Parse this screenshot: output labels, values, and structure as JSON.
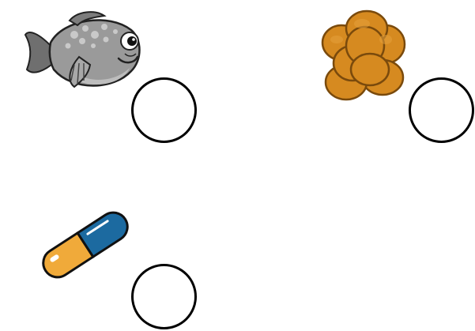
{
  "items": [
    {
      "name": "fish",
      "icon": "fish-icon",
      "answer": ""
    },
    {
      "name": "fish-eggs",
      "icon": "roe-cluster-icon",
      "answer": ""
    },
    {
      "name": "capsule",
      "icon": "pill-capsule-icon",
      "answer": ""
    }
  ],
  "colors": {
    "fish_body": "#9a9a9a",
    "fish_spots": "#c9c9c9",
    "roe": "#d68a20",
    "roe_outline": "#8a5410",
    "capsule_blue": "#1c6aa0",
    "capsule_orange": "#f0aa3a"
  }
}
